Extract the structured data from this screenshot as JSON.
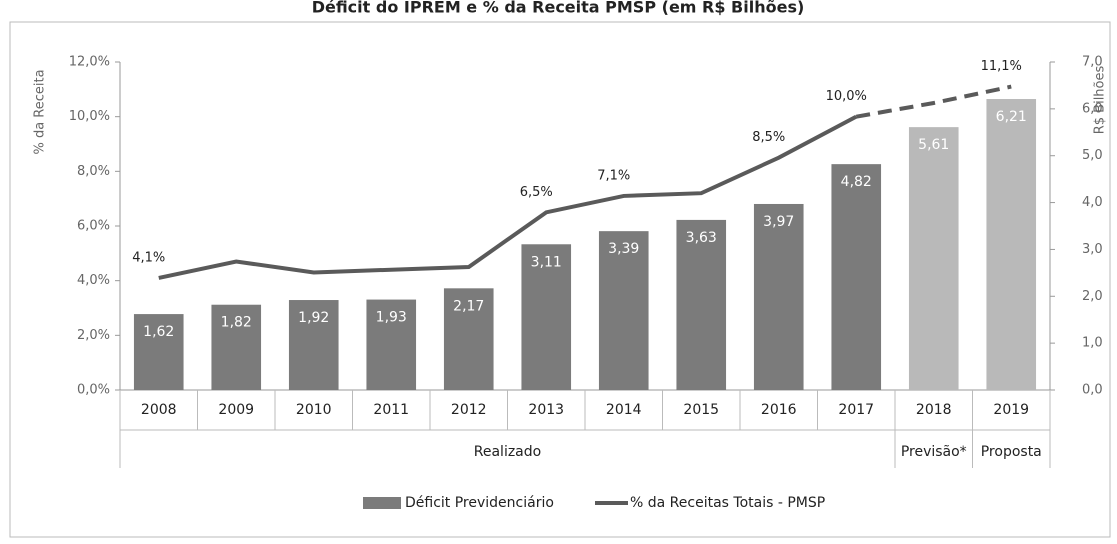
{
  "chart_data": {
    "type": "bar_line",
    "title": "Déficit do IPREM e % da Receita PMSP (em R$ Bilhões)",
    "categories": [
      "2008",
      "2009",
      "2010",
      "2011",
      "2012",
      "2013",
      "2014",
      "2015",
      "2016",
      "2017",
      "2018",
      "2019"
    ],
    "category_groups": [
      {
        "label": "Realizado",
        "from": 0,
        "to": 9
      },
      {
        "label": "Previsão*",
        "from": 10,
        "to": 10
      },
      {
        "label": "Proposta",
        "from": 11,
        "to": 11
      }
    ],
    "ylabel": "% da Receita",
    "y2label": "R$ Bilhões",
    "ylim": [
      0,
      12
    ],
    "yticks": [
      {
        "value": 0,
        "label": "0,0%"
      },
      {
        "value": 2,
        "label": "2,0%"
      },
      {
        "value": 4,
        "label": "4,0%"
      },
      {
        "value": 6,
        "label": "6,0%"
      },
      {
        "value": 8,
        "label": "8,0%"
      },
      {
        "value": 10,
        "label": "10,0%"
      },
      {
        "value": 12,
        "label": "12,0%"
      }
    ],
    "y2lim": [
      0,
      7
    ],
    "y2ticks": [
      {
        "value": 0,
        "label": "0,0"
      },
      {
        "value": 1,
        "label": "1,0"
      },
      {
        "value": 2,
        "label": "2,0"
      },
      {
        "value": 3,
        "label": "3,0"
      },
      {
        "value": 4,
        "label": "4,0"
      },
      {
        "value": 5,
        "label": "5,0"
      },
      {
        "value": 6,
        "label": "6,0"
      },
      {
        "value": 7,
        "label": "7,0"
      }
    ],
    "series": [
      {
        "name": "Déficit Previdenciário",
        "type": "bar",
        "axis": "y2",
        "colors": [
          "#7b7b7b",
          "#7b7b7b",
          "#7b7b7b",
          "#7b7b7b",
          "#7b7b7b",
          "#7b7b7b",
          "#7b7b7b",
          "#7b7b7b",
          "#7b7b7b",
          "#7b7b7b",
          "#b9b9b9",
          "#b9b9b9"
        ],
        "values": [
          1.62,
          1.82,
          1.92,
          1.93,
          2.17,
          3.11,
          3.39,
          3.63,
          3.97,
          4.82,
          5.61,
          6.21
        ],
        "value_labels": [
          "1,62",
          "1,82",
          "1,92",
          "1,93",
          "2,17",
          "3,11",
          "3,39",
          "3,63",
          "3,97",
          "4,82",
          "5,61",
          "6,21"
        ]
      },
      {
        "name": "% da Receitas Totais - PMSP",
        "type": "line",
        "axis": "y",
        "color": "#5a5a5a",
        "dashed_from_category": 9,
        "values": [
          4.1,
          4.7,
          4.3,
          4.4,
          4.5,
          6.5,
          7.1,
          7.2,
          8.5,
          10.0,
          10.5,
          11.1
        ],
        "value_labels": [
          "4,1%",
          null,
          null,
          null,
          null,
          "6,5%",
          "7,1%",
          null,
          "8,5%",
          "10,0%",
          null,
          "11,1%"
        ]
      }
    ]
  }
}
